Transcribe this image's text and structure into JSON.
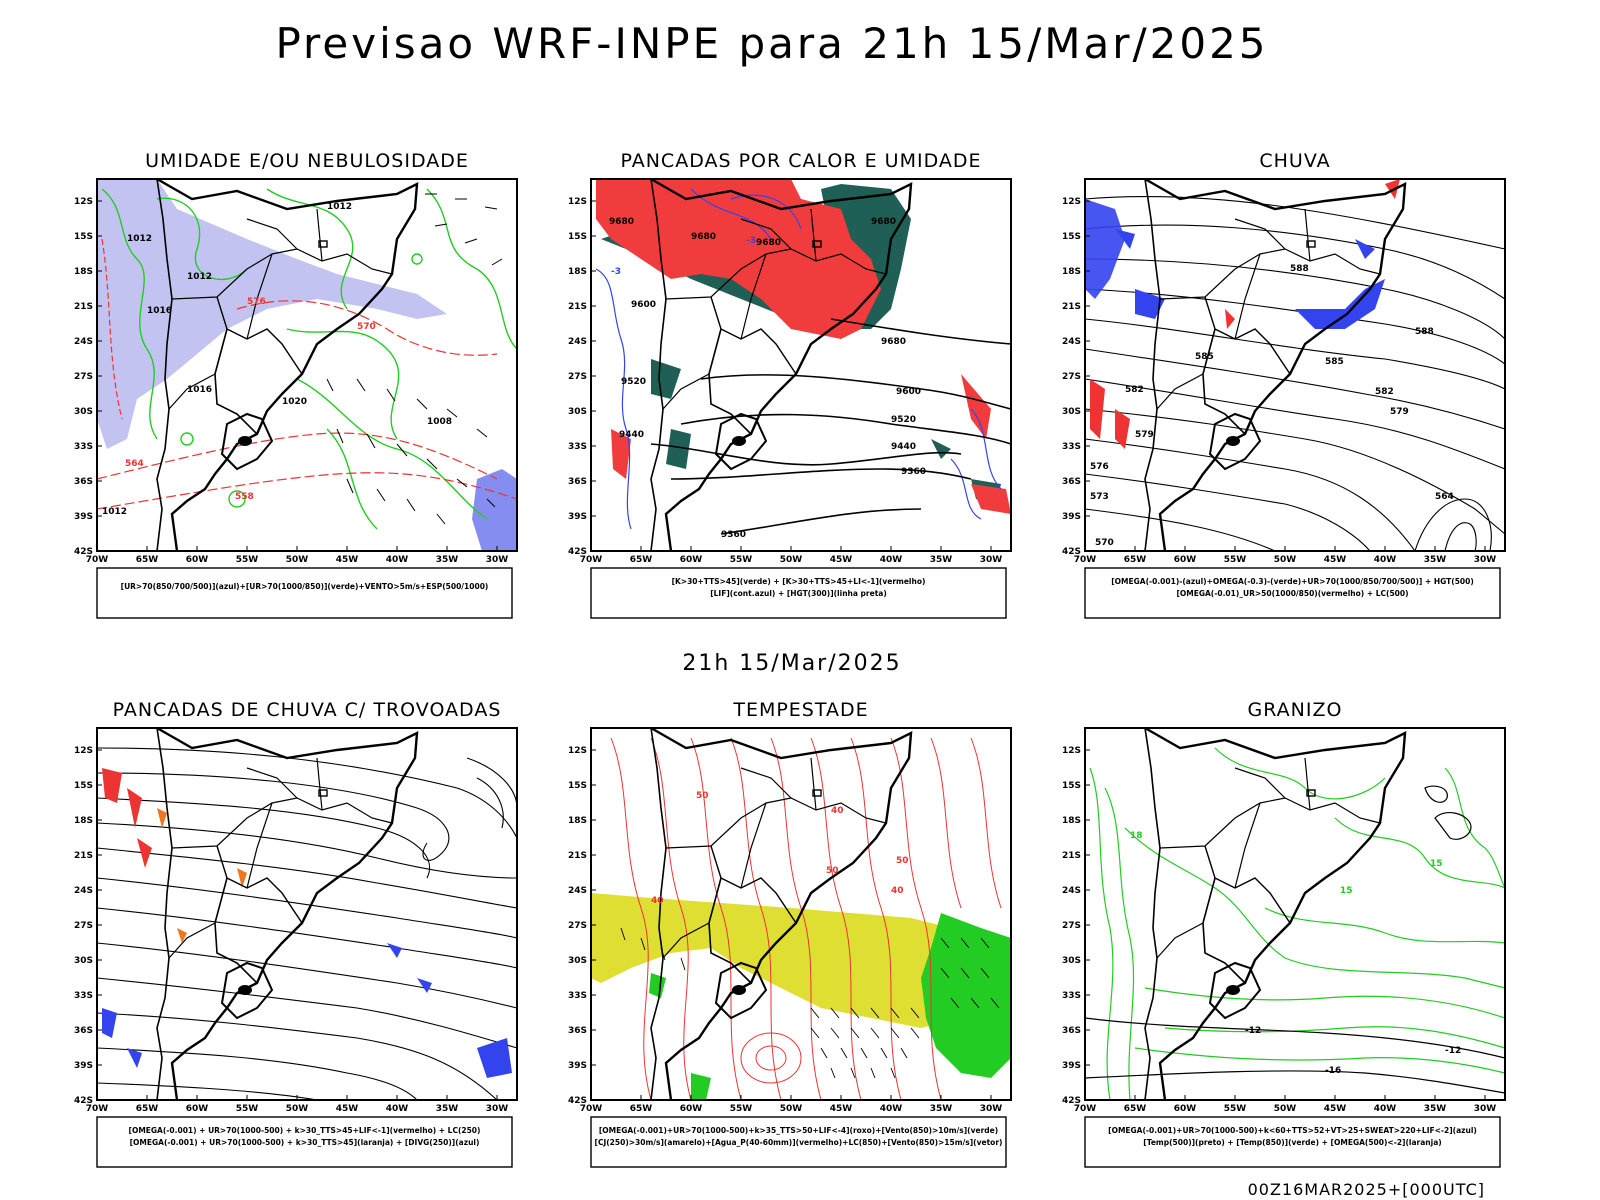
{
  "main_title": "Previsao WRF-INPE  para 21h 15/Mar/2025",
  "middle_label": "21h 15/Mar/2025",
  "footer": "00Z16MAR2025+[000UTC]",
  "lat_ticks": [
    "12S",
    "15S",
    "18S",
    "21S",
    "24S",
    "27S",
    "30S",
    "33S",
    "36S",
    "39S",
    "42S"
  ],
  "lon_ticks": [
    "70W",
    "65W",
    "60W",
    "55W",
    "50W",
    "45W",
    "40W",
    "35W",
    "30W"
  ],
  "colors": {
    "blue": "#3344ee",
    "green": "#22cc22",
    "red": "#ee3333",
    "darkgreen": "#1f5f55",
    "yellow": "#dede33",
    "lavender": "#b8b8ee",
    "orange": "#ee7722"
  },
  "panels": [
    {
      "title": "UMIDADE E/OU NEBULOSIDADE",
      "legend": [
        "[UR>70(850/700/500)](azul)+[UR>70(1000/850)](verde)+VENTO>5m/s+ESP(500/1000)"
      ],
      "labels": [
        "1012",
        "1012",
        "1012",
        "1016",
        "1020",
        "576",
        "570",
        "564",
        "558",
        "1016",
        "1008",
        "1012"
      ]
    },
    {
      "title": "PANCADAS POR CALOR E UMIDADE",
      "legend": [
        "[K>30+TTS>45](verde) + [K>30+TTS>45+LI<-1](vermelho)",
        "[LIF](cont.azul) + [HGT(300)](linha preta)"
      ],
      "labels": [
        "9680",
        "9680",
        "9680",
        "9680",
        "9600",
        "9520",
        "9440",
        "9360",
        "9680",
        "9600",
        "9520",
        "9440",
        "9360",
        "-3",
        "-3"
      ]
    },
    {
      "title": "CHUVA",
      "legend": [
        "[OMEGA(-0.001)-(azul)+OMEGA(-0.3)-(verde)+UR>70(1000/850/700/500)] + HGT(500)",
        "[OMEGA(-0.01)_UR>50(1000/850)(vermelho) + LC(500)"
      ],
      "labels": [
        "588",
        "585",
        "582",
        "579",
        "576",
        "573",
        "570",
        "564",
        "588",
        "585",
        "582",
        "579"
      ]
    },
    {
      "title": "PANCADAS DE CHUVA C/ TROVOADAS",
      "legend": [
        "[OMEGA(-0.001) + UR>70(1000-500) + k>30_TTS>45+LIF<-1](vermelho) + LC(250)",
        "[OMEGA(-0.001) + UR>70(1000-500) + k>30_TTS>45](laranja) + [DIVG(250)](azul)"
      ],
      "labels": []
    },
    {
      "title": "TEMPESTADE",
      "legend": [
        "[OMEGA(-0.001)+UR>70(1000-500)+k>35_TTS>50+LIF<-4](roxo)+[Vento(850)>10m/s](verde)",
        "[CJ(250)>30m/s](amarelo)+[Agua_P(40-60mm)](vermelho)+LC(850)+[Vento(850)>15m/s](vetor)"
      ],
      "labels": [
        "50",
        "50",
        "40",
        "40",
        "50",
        "40"
      ]
    },
    {
      "title": "GRANIZO",
      "legend": [
        "[OMEGA(-0.001)+UR>70(1000-500)+k<60+TTS>52+VT>25+SWEAT>220+LIF<-2](azul)",
        "[Temp(500)](preto) + [Temp(850)](verde) + [OMEGA(500)<-2](laranja)"
      ],
      "labels": [
        "-12",
        "-16",
        "-12",
        "15",
        "15",
        "18"
      ]
    }
  ]
}
